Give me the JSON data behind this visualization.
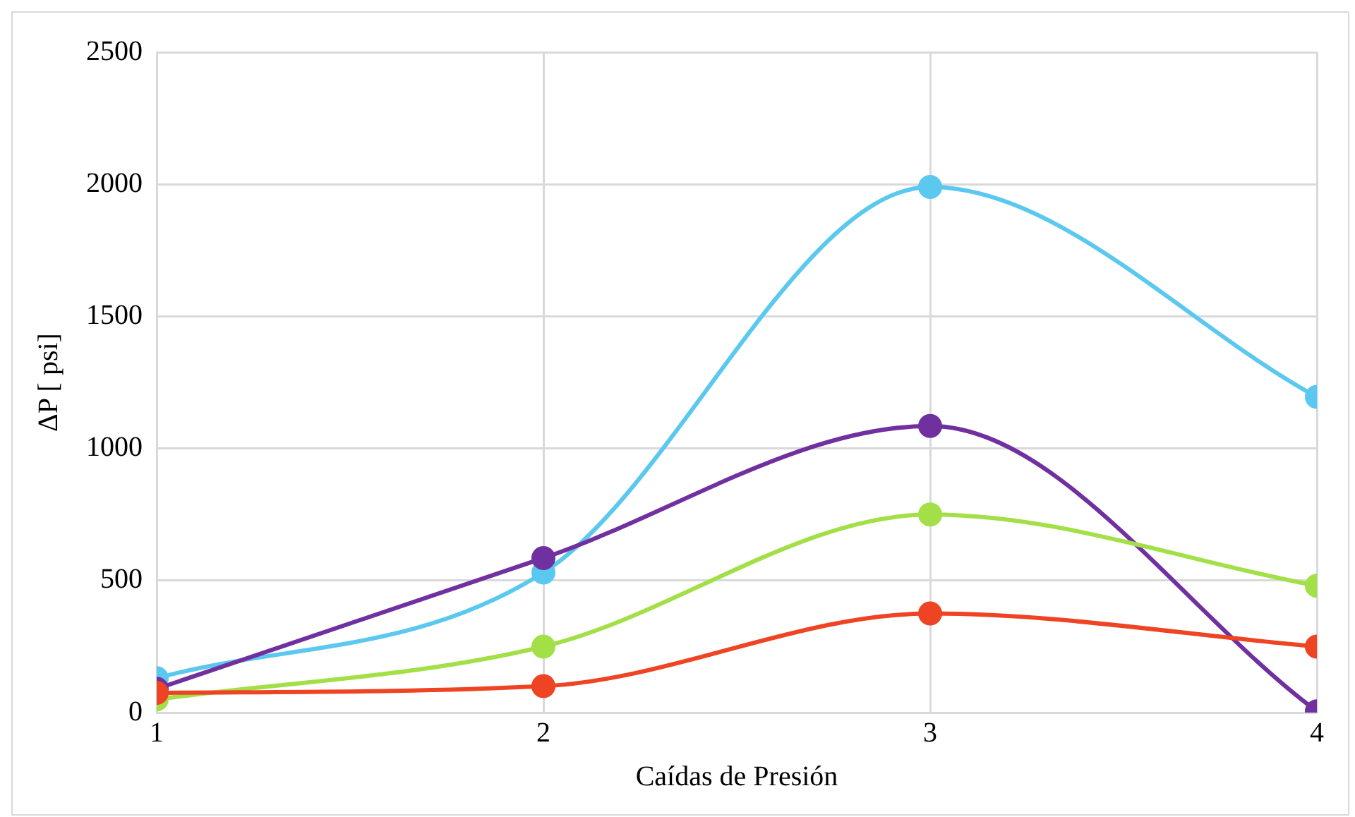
{
  "chart_data": {
    "type": "line",
    "xlabel": "Caídas de Presión",
    "ylabel": "ΔP [ psi]",
    "x": [
      1,
      2,
      3,
      4
    ],
    "xlim": [
      1,
      4
    ],
    "xticks": [
      1,
      2,
      3,
      4
    ],
    "ylim": [
      0,
      2500
    ],
    "yticks": [
      0,
      500,
      1000,
      1500,
      2000,
      2500
    ],
    "grid": true,
    "legend": false,
    "marker": "circle",
    "line_style": "solid",
    "series": [
      {
        "color": "#5bc8ef",
        "values": [
          130,
          530,
          1990,
          1195
        ]
      },
      {
        "color": "#7030a0",
        "values": [
          90,
          585,
          1085,
          5
        ]
      },
      {
        "color": "#a3e048",
        "values": [
          50,
          250,
          750,
          480
        ]
      },
      {
        "color": "#ee4423",
        "values": [
          75,
          100,
          375,
          250
        ]
      }
    ]
  }
}
